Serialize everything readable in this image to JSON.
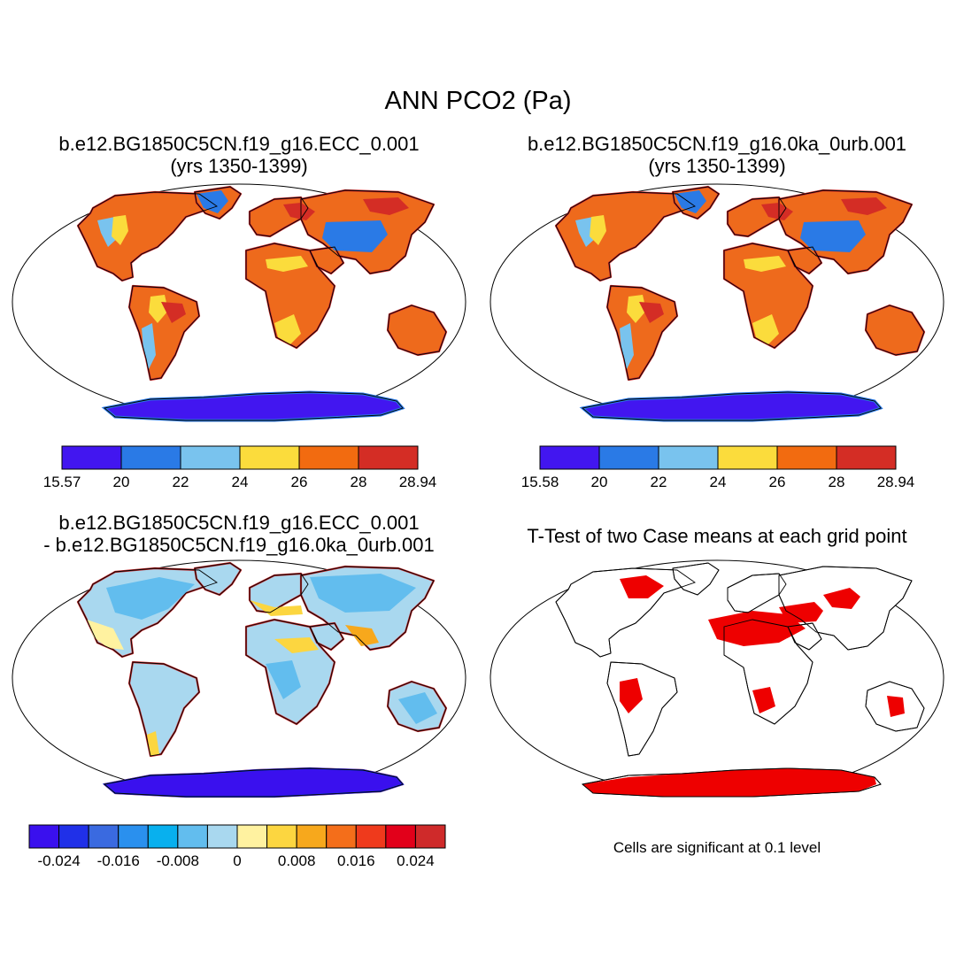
{
  "figure": {
    "title": "ANN PCO2 (Pa)",
    "colors": {
      "land": "#ee6a1c",
      "land_edge": "#c8292a",
      "ocean": "#ffffff",
      "coast": "#000000",
      "sig": "#ee0000"
    }
  },
  "panels": [
    {
      "name": "case1",
      "title_line1": "b.e12.BG1850C5CN.f19_g16.ECC_0.001",
      "title_line2": "(yrs 1350-1399)",
      "colorbar": {
        "colors": [
          "#4216f0",
          "#2a7ae6",
          "#79c3ee",
          "#fbdc3c",
          "#f26b10",
          "#d42d25"
        ],
        "labels": [
          "15.57",
          "20",
          "22",
          "24",
          "26",
          "28",
          "28.94"
        ]
      }
    },
    {
      "name": "case2",
      "title_line1": "b.e12.BG1850C5CN.f19_g16.0ka_0urb.001",
      "title_line2": "(yrs 1350-1399)",
      "colorbar": {
        "colors": [
          "#4216f0",
          "#2a7ae6",
          "#79c3ee",
          "#fbdc3c",
          "#f26b10",
          "#d42d25"
        ],
        "labels": [
          "15.58",
          "20",
          "22",
          "24",
          "26",
          "28",
          "28.94"
        ]
      }
    },
    {
      "name": "difference",
      "title_line1": "b.e12.BG1850C5CN.f19_g16.ECC_0.001",
      "title_line2": "- b.e12.BG1850C5CN.f19_g16.0ka_0urb.001",
      "colorbar": {
        "colors": [
          "#3a10ee",
          "#2030e8",
          "#3a6ae0",
          "#2a90ee",
          "#08b0ee",
          "#62bdee",
          "#a9d8ef",
          "#fff2a0",
          "#fcd640",
          "#f7a81c",
          "#f46e1a",
          "#ef3a1c",
          "#e2001a",
          "#cf2a2a"
        ],
        "labels": [
          "-0.024",
          "-0.016",
          "-0.008",
          "0",
          "0.008",
          "0.016",
          "0.024"
        ]
      }
    },
    {
      "name": "ttest",
      "title_line1": "T-Test of two Case means at each grid point",
      "note": "Cells are significant at 0.1 level"
    }
  ]
}
